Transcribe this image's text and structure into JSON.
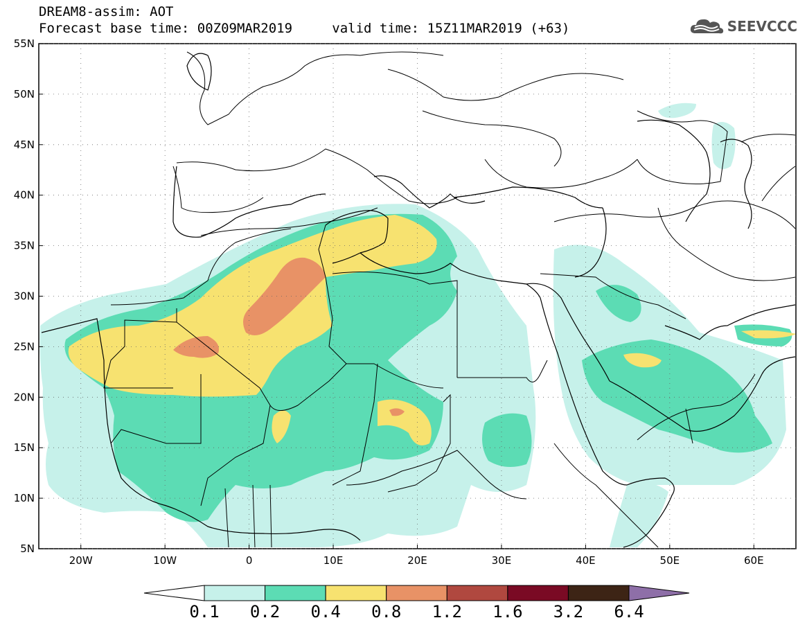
{
  "title": {
    "line1": "DREAM8-assim: AOT",
    "base_time_label": "Forecast base time:",
    "base_time": "00Z09MAR2019",
    "valid_time_label": "valid time:",
    "valid_time": "15Z11MAR2019 (+63)"
  },
  "logo": {
    "text": "SEEVCCC",
    "icon": "cloud-icon"
  },
  "axes": {
    "x_ticks": [
      "20W",
      "10W",
      "0",
      "10E",
      "20E",
      "30E",
      "40E",
      "50E",
      "60E"
    ],
    "y_ticks": [
      "55N",
      "50N",
      "45N",
      "40N",
      "35N",
      "30N",
      "25N",
      "20N",
      "15N",
      "10N",
      "5N"
    ],
    "lon_range": [
      -25,
      65
    ],
    "lat_range": [
      5,
      55
    ]
  },
  "colorbar": {
    "levels": [
      "0.1",
      "0.2",
      "0.4",
      "0.8",
      "1.2",
      "1.6",
      "3.2",
      "6.4"
    ],
    "colors": [
      "#ffffff",
      "#c6f1ea",
      "#5cdcb4",
      "#f7e270",
      "#e89266",
      "#b0483f",
      "#7a0a24",
      "#3d2415",
      "#8e6fa8"
    ]
  }
}
